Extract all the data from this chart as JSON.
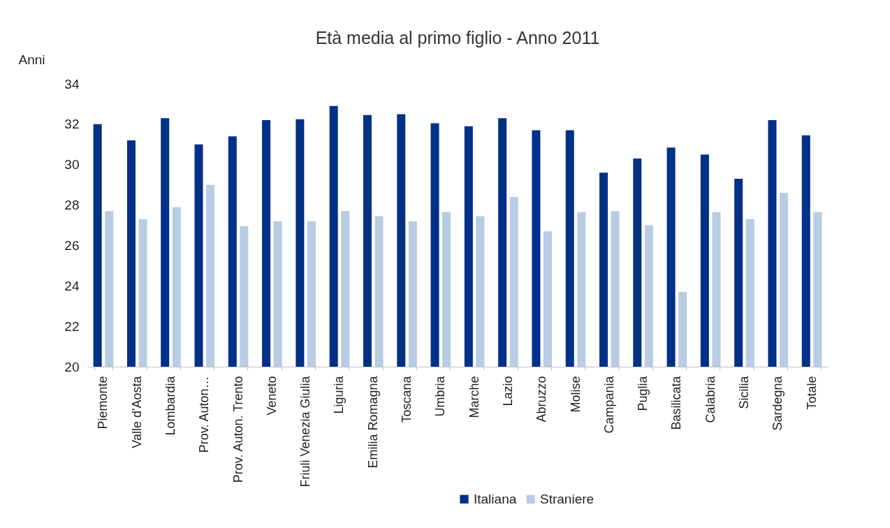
{
  "chart_data": {
    "type": "bar",
    "title": "Età media al primo figlio - Anno 2011",
    "ylabel": "Anni",
    "categories": [
      "Piemonte",
      "Valle d'Aosta",
      "Lombardia",
      "Prov. Auton…",
      "Prov. Auton. Trento",
      "Veneto",
      "Friuli Venezia Giulia",
      "Liguria",
      "Emilia Romagna",
      "Toscana",
      "Umbria",
      "Marche",
      "Lazio",
      "Abruzzo",
      "Molise",
      "Campania",
      "Puglia",
      "Basilicata",
      "Calabria",
      "Sicilia",
      "Sardegna",
      "Totale"
    ],
    "series": [
      {
        "name": "Italiana",
        "color": "#003087",
        "values": [
          32.0,
          31.2,
          32.3,
          31.0,
          31.4,
          32.2,
          32.25,
          32.9,
          32.45,
          32.5,
          32.05,
          31.9,
          32.3,
          31.7,
          31.7,
          29.6,
          30.3,
          30.85,
          30.5,
          29.3,
          32.2,
          31.45
        ]
      },
      {
        "name": "Straniere",
        "color": "#b8cce4",
        "values": [
          27.7,
          27.3,
          27.9,
          29.0,
          26.95,
          27.2,
          27.2,
          27.7,
          27.45,
          27.2,
          27.65,
          27.45,
          28.4,
          26.7,
          27.65,
          27.7,
          27.0,
          23.7,
          27.65,
          27.3,
          28.6,
          27.65
        ]
      }
    ],
    "ylim": [
      20,
      34
    ],
    "yticks": [
      20,
      22,
      24,
      26,
      28,
      30,
      32,
      34
    ],
    "grid": false,
    "legend": "bottom"
  }
}
